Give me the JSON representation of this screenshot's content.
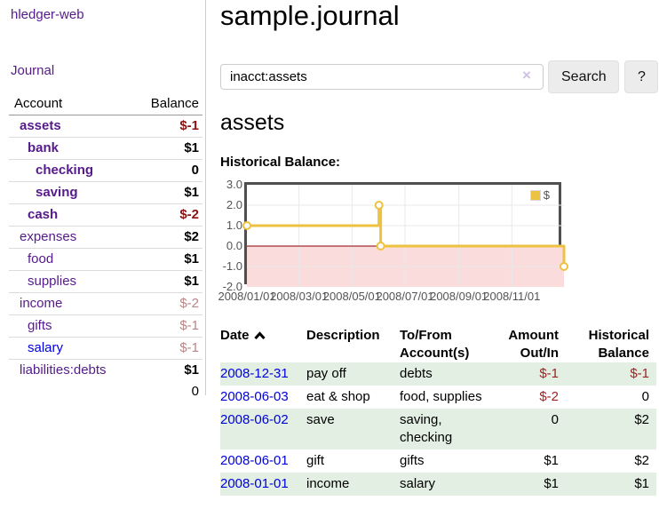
{
  "app": {
    "brand": "hledger-web",
    "nav_journal": "Journal"
  },
  "palette": {
    "link_purple": "#551a8b",
    "link_blue": "#0000dd",
    "negative_strong": "#8b1212",
    "negative_soft": "#b98585",
    "register_negative": "#9b2323",
    "row_green": "#e2efe2",
    "chart_line": "#edc240",
    "chart_negative_bg": "#fbdcdc",
    "zero_line": "#8b0000",
    "chart_border": "#4f4f4f",
    "grid": "#e8e8e8"
  },
  "sidebar": {
    "header": {
      "account": "Account",
      "balance": "Balance"
    },
    "accounts": [
      {
        "name": "assets",
        "balance": "$-1",
        "indent": 0,
        "bold": true,
        "balance_bold": true,
        "balance_style": "neg-strong"
      },
      {
        "name": "bank",
        "balance": "$1",
        "indent": 1,
        "bold": true,
        "balance_bold": true,
        "balance_style": "normal"
      },
      {
        "name": "checking",
        "balance": "0",
        "indent": 2,
        "bold": true,
        "balance_bold": true,
        "balance_style": "normal"
      },
      {
        "name": "saving",
        "balance": "$1",
        "indent": 2,
        "bold": true,
        "balance_bold": true,
        "balance_style": "normal"
      },
      {
        "name": "cash",
        "balance": "$-2",
        "indent": 1,
        "bold": true,
        "balance_bold": true,
        "balance_style": "neg-strong"
      },
      {
        "name": "expenses",
        "balance": "$2",
        "indent": 0,
        "bold": false,
        "balance_bold": true,
        "balance_style": "normal"
      },
      {
        "name": "food",
        "balance": "$1",
        "indent": 1,
        "bold": false,
        "balance_bold": true,
        "balance_style": "normal"
      },
      {
        "name": "supplies",
        "balance": "$1",
        "indent": 1,
        "bold": false,
        "balance_bold": true,
        "balance_style": "normal"
      },
      {
        "name": "income",
        "balance": "$-2",
        "indent": 0,
        "bold": false,
        "balance_bold": false,
        "balance_style": "neg-soft"
      },
      {
        "name": "gifts",
        "balance": "$-1",
        "indent": 1,
        "bold": false,
        "balance_bold": false,
        "balance_style": "neg-soft"
      },
      {
        "name": "salary",
        "balance": "$-1",
        "indent": 1,
        "bold": false,
        "balance_bold": false,
        "balance_style": "neg-soft",
        "link_style": "unvisited"
      },
      {
        "name": "liabilities:debts",
        "balance": "$1",
        "indent": 0,
        "bold": false,
        "balance_bold": true,
        "balance_style": "normal"
      }
    ],
    "total": "0"
  },
  "header": {
    "title": "sample.journal"
  },
  "search": {
    "value": "inacct:assets",
    "clear_icon": "×",
    "button": "Search",
    "help_button": "?"
  },
  "account_page": {
    "heading": "assets",
    "chart_label": "Historical Balance:"
  },
  "chart_data": {
    "type": "line",
    "style": "step",
    "title": "Historical Balance of assets",
    "series": [
      {
        "name": "$",
        "color": "#edc240",
        "points": [
          [
            "2008-01-01",
            1
          ],
          [
            "2008-06-01",
            2
          ],
          [
            "2008-06-03",
            0
          ],
          [
            "2008-12-31",
            -1
          ]
        ]
      }
    ],
    "xrange": [
      "2008-01-01",
      "2008-12-31"
    ],
    "ylim": [
      -2,
      3
    ],
    "yticks": [
      3.0,
      2.0,
      1.0,
      0.0,
      -1.0,
      -2.0
    ],
    "xticks": [
      "2008/01/01",
      "2008/03/01",
      "2008/05/01",
      "2008/07/01",
      "2008/09/01",
      "2008/11/01"
    ],
    "grid": true,
    "legend_position": "top-right",
    "negative_region_shaded": true
  },
  "register": {
    "columns": [
      {
        "label": "Date",
        "sortable": true,
        "sort": "asc"
      },
      {
        "label": "Description"
      },
      {
        "label": "To/From Account(s)"
      },
      {
        "label": "Amount Out/In",
        "align": "right"
      },
      {
        "label": "Historical Balance",
        "align": "right"
      }
    ],
    "rows": [
      {
        "date": "2008-12-31",
        "description": "pay off",
        "accounts": "debts",
        "amount": "$-1",
        "balance": "$-1"
      },
      {
        "date": "2008-06-03",
        "description": "eat & shop",
        "accounts": "food, supplies",
        "amount": "$-2",
        "balance": "0"
      },
      {
        "date": "2008-06-02",
        "description": "save",
        "accounts": "saving, checking",
        "amount": "0",
        "balance": "$2"
      },
      {
        "date": "2008-06-01",
        "description": "gift",
        "accounts": "gifts",
        "amount": "$1",
        "balance": "$2"
      },
      {
        "date": "2008-01-01",
        "description": "income",
        "accounts": "salary",
        "amount": "$1",
        "balance": "$1"
      }
    ]
  }
}
